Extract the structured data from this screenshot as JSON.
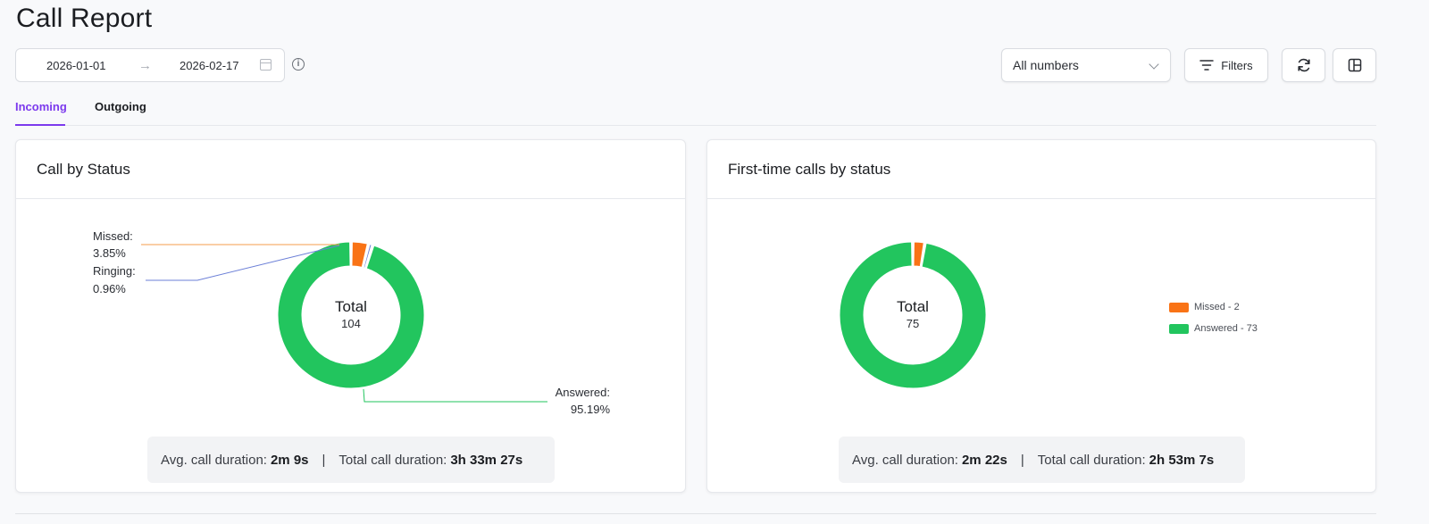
{
  "page": {
    "title": "Call Report"
  },
  "date_range": {
    "start": "2026-01-01",
    "end": "2026-02-17"
  },
  "numbers_select": {
    "value": "All numbers"
  },
  "toolbar": {
    "filters_label": "Filters"
  },
  "tabs": [
    {
      "label": "Incoming",
      "active": true
    },
    {
      "label": "Outgoing",
      "active": false
    }
  ],
  "colors": {
    "answered": "#22c55e",
    "missed": "#f97316",
    "ringing": "#6b7fd7",
    "accent": "#7c3aed"
  },
  "cards": [
    {
      "title": "Call by Status",
      "center_label": "Total",
      "center_value": "104",
      "labels": {
        "missed_name": "Missed:",
        "missed_pct": "3.85%",
        "ringing_name": "Ringing:",
        "ringing_pct": "0.96%",
        "answered_name": "Answered:",
        "answered_pct": "95.19%"
      },
      "summary": {
        "avg_label": "Avg. call duration:",
        "avg_value": "2m 9s",
        "total_label": "Total call duration:",
        "total_value": "3h 33m 27s"
      }
    },
    {
      "title": "First-time calls by status",
      "center_label": "Total",
      "center_value": "75",
      "legend": [
        "Missed - 2",
        "Answered - 73"
      ],
      "summary": {
        "avg_label": "Avg. call duration:",
        "avg_value": "2m 22s",
        "total_label": "Total call duration:",
        "total_value": "2h 53m 7s"
      }
    }
  ],
  "chart_data": [
    {
      "type": "pie",
      "title": "Call by Status",
      "categories": [
        "Missed",
        "Ringing",
        "Answered"
      ],
      "values": [
        3.85,
        0.96,
        95.19
      ],
      "total": 104
    },
    {
      "type": "pie",
      "title": "First-time calls by status",
      "categories": [
        "Missed",
        "Answered"
      ],
      "values": [
        2,
        73
      ],
      "total": 75
    }
  ]
}
